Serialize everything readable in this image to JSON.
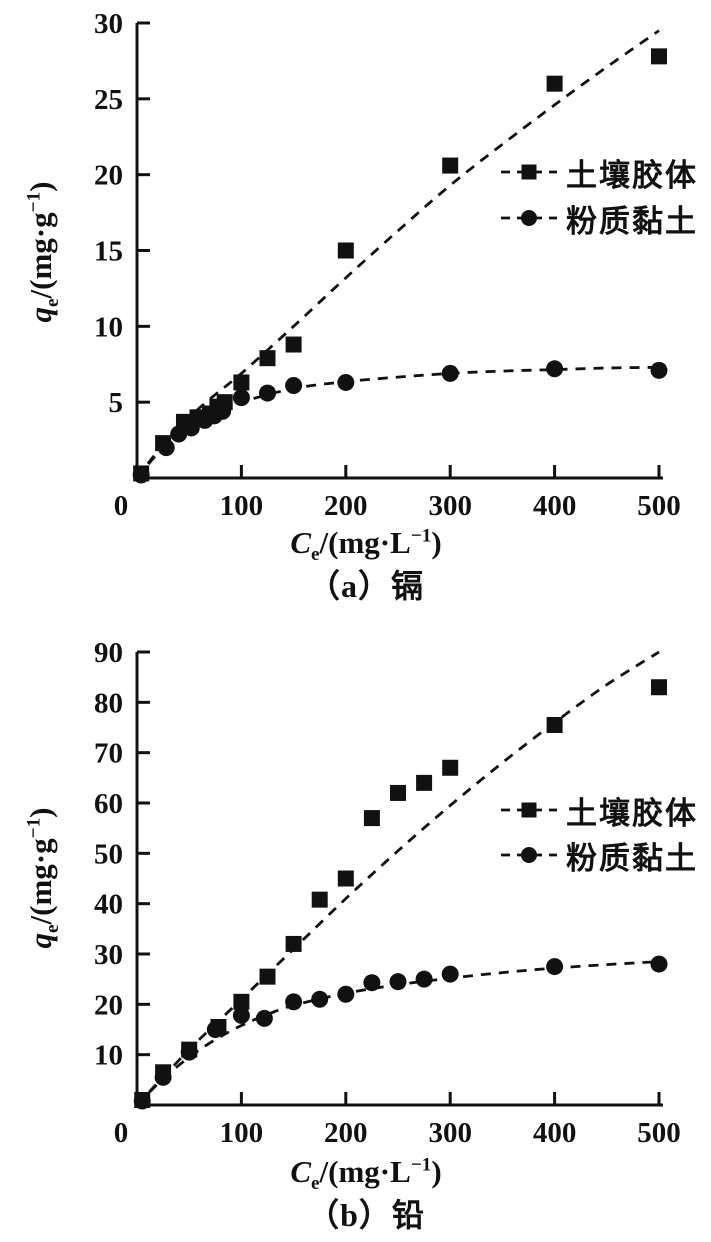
{
  "page": {
    "background": "#ffffff",
    "ink": "#111111"
  },
  "chart_data": [
    {
      "type": "scatter",
      "caption": "（a）镉",
      "xlabel": "Ce/(mg·L−1)",
      "ylabel": "qe/(mg·g−1)",
      "xlabel_parts": {
        "symbol": "C",
        "subscript": "e",
        "unit_open": "/(mg·L",
        "exponent": "−1",
        "unit_close": ")"
      },
      "ylabel_parts": {
        "symbol": "q",
        "subscript": "e",
        "unit_open": "/(mg·g",
        "exponent": "−1",
        "unit_close": ")"
      },
      "xlim": [
        0,
        500
      ],
      "ylim": [
        0,
        30
      ],
      "xticks": [
        0,
        100,
        200,
        300,
        400,
        500
      ],
      "yticks": [
        0,
        5,
        10,
        15,
        20,
        25,
        30
      ],
      "grid": false,
      "legend_position": "inside-upper-right",
      "line_style": "dashed",
      "series": [
        {
          "name": "土壤胶体",
          "marker": "square",
          "points": [
            [
              4,
              0.3
            ],
            [
              25,
              2.3
            ],
            [
              45,
              3.7
            ],
            [
              58,
              4.0
            ],
            [
              70,
              4.25
            ],
            [
              77,
              4.7
            ],
            [
              84,
              5.0
            ],
            [
              100,
              6.3
            ],
            [
              125,
              7.9
            ],
            [
              150,
              8.8
            ],
            [
              200,
              15.0
            ],
            [
              300,
              20.6
            ],
            [
              400,
              26.0
            ],
            [
              500,
              27.8
            ]
          ],
          "fit_curve": [
            [
              0,
              0
            ],
            [
              25,
              2.2
            ],
            [
              50,
              4.0
            ],
            [
              75,
              5.5
            ],
            [
              100,
              6.9
            ],
            [
              150,
              10.0
            ],
            [
              200,
              13.2
            ],
            [
              250,
              16.3
            ],
            [
              300,
              19.3
            ],
            [
              350,
              22.0
            ],
            [
              400,
              24.6
            ],
            [
              450,
              27.1
            ],
            [
              500,
              29.5
            ]
          ]
        },
        {
          "name": "粉质黏土",
          "marker": "circle",
          "points": [
            [
              4,
              0.2
            ],
            [
              28,
              2.0
            ],
            [
              40,
              2.9
            ],
            [
              52,
              3.3
            ],
            [
              65,
              3.8
            ],
            [
              74,
              4.1
            ],
            [
              82,
              4.4
            ],
            [
              100,
              5.3
            ],
            [
              125,
              5.6
            ],
            [
              150,
              6.1
            ],
            [
              200,
              6.3
            ],
            [
              300,
              6.9
            ],
            [
              400,
              7.2
            ],
            [
              500,
              7.1
            ]
          ],
          "fit_curve": [
            [
              0,
              0
            ],
            [
              25,
              2.0
            ],
            [
              50,
              3.3
            ],
            [
              75,
              4.3
            ],
            [
              100,
              5.0
            ],
            [
              150,
              5.9
            ],
            [
              200,
              6.35
            ],
            [
              250,
              6.65
            ],
            [
              300,
              6.9
            ],
            [
              350,
              7.05
            ],
            [
              400,
              7.15
            ],
            [
              450,
              7.25
            ],
            [
              500,
              7.3
            ]
          ]
        }
      ]
    },
    {
      "type": "scatter",
      "caption": "（b）铅",
      "xlabel": "Ce/(mg·L−1)",
      "ylabel": "qe/(mg·g−1)",
      "xlabel_parts": {
        "symbol": "C",
        "subscript": "e",
        "unit_open": "/(mg·L",
        "exponent": "−1",
        "unit_close": ")"
      },
      "ylabel_parts": {
        "symbol": "q",
        "subscript": "e",
        "unit_open": "/(mg·g",
        "exponent": "−1",
        "unit_close": ")"
      },
      "xlim": [
        0,
        500
      ],
      "ylim": [
        0,
        90
      ],
      "xticks": [
        0,
        100,
        200,
        300,
        400,
        500
      ],
      "yticks": [
        0,
        10,
        20,
        30,
        40,
        50,
        60,
        70,
        80,
        90
      ],
      "grid": false,
      "legend_position": "inside-right",
      "line_style": "dashed",
      "series": [
        {
          "name": "土壤胶体",
          "marker": "square",
          "points": [
            [
              5,
              1.0
            ],
            [
              25,
              6.5
            ],
            [
              50,
              11.0
            ],
            [
              78,
              15.5
            ],
            [
              100,
              20.5
            ],
            [
              125,
              25.5
            ],
            [
              150,
              32.0
            ],
            [
              175,
              40.8
            ],
            [
              200,
              45.0
            ],
            [
              225,
              57.0
            ],
            [
              250,
              62.0
            ],
            [
              275,
              64.0
            ],
            [
              300,
              67.0
            ],
            [
              400,
              75.5
            ],
            [
              500,
              83.0
            ]
          ],
          "fit_curve": [
            [
              0,
              0
            ],
            [
              50,
              11.0
            ],
            [
              100,
              21.0
            ],
            [
              150,
              31.0
            ],
            [
              200,
              41.0
            ],
            [
              250,
              50.5
            ],
            [
              300,
              59.5
            ],
            [
              350,
              68.0
            ],
            [
              400,
              76.0
            ],
            [
              450,
              83.5
            ],
            [
              500,
              90.0
            ]
          ]
        },
        {
          "name": "粉质黏土",
          "marker": "circle",
          "points": [
            [
              5,
              0.8
            ],
            [
              25,
              5.5
            ],
            [
              50,
              10.5
            ],
            [
              75,
              15.0
            ],
            [
              100,
              17.8
            ],
            [
              122,
              17.2
            ],
            [
              150,
              20.5
            ],
            [
              175,
              21.0
            ],
            [
              200,
              22.0
            ],
            [
              225,
              24.3
            ],
            [
              250,
              24.5
            ],
            [
              275,
              25.0
            ],
            [
              300,
              26.0
            ],
            [
              400,
              27.5
            ],
            [
              500,
              28.0
            ]
          ],
          "fit_curve": [
            [
              0,
              0
            ],
            [
              25,
              5.2
            ],
            [
              50,
              9.5
            ],
            [
              75,
              13.0
            ],
            [
              100,
              15.8
            ],
            [
              125,
              18.0
            ],
            [
              150,
              19.8
            ],
            [
              200,
              22.2
            ],
            [
              250,
              23.9
            ],
            [
              300,
              25.2
            ],
            [
              350,
              26.3
            ],
            [
              400,
              27.2
            ],
            [
              450,
              27.9
            ],
            [
              500,
              28.5
            ]
          ]
        }
      ]
    }
  ]
}
